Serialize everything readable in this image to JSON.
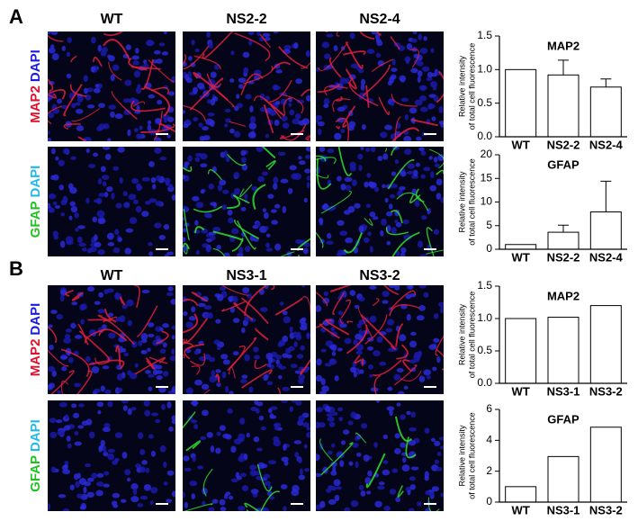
{
  "figure": {
    "panels": [
      {
        "label": "A",
        "columns": [
          "WT",
          "NS2-2",
          "NS2-4"
        ],
        "rows": [
          [
            "MAP2",
            "DAPI"
          ],
          [
            "GFAP",
            "DAPI"
          ]
        ]
      },
      {
        "label": "B",
        "columns": [
          "WT",
          "NS3-1",
          "NS3-2"
        ],
        "rows": [
          [
            "MAP2",
            "DAPI"
          ],
          [
            "GFAP",
            "DAPI"
          ]
        ]
      }
    ]
  },
  "chart_data": [
    {
      "type": "bar",
      "title": "MAP2",
      "ylabel": [
        "Relative intensity",
        "of total cell fluorescence"
      ],
      "categories": [
        "WT",
        "NS2-2",
        "NS2-4"
      ],
      "values": [
        1.0,
        0.92,
        0.74
      ],
      "errors": [
        null,
        0.22,
        0.12
      ],
      "color": "#ffffff",
      "ylim": [
        0,
        1.5
      ],
      "yticks": [
        {
          "value": 0,
          "label": "0.0"
        },
        0.5,
        {
          "value": 1,
          "label": "1.0"
        },
        1.5
      ]
    },
    {
      "type": "bar",
      "title": "GFAP",
      "ylabel": [
        "Relative intensity",
        "of total cell fluorescence"
      ],
      "categories": [
        "WT",
        "NS2-2",
        "NS2-4"
      ],
      "values": [
        1.0,
        3.6,
        7.9
      ],
      "errors": [
        null,
        1.5,
        6.5
      ],
      "color": "#ffffff",
      "ylim": [
        0,
        20
      ],
      "yticks": [
        0,
        5,
        10,
        15,
        20
      ]
    },
    {
      "type": "bar",
      "title": "MAP2",
      "ylabel": [
        "Relative intensity",
        "of total cell fluorescence"
      ],
      "categories": [
        "WT",
        "NS3-1",
        "NS3-2"
      ],
      "values": [
        1.0,
        1.02,
        1.2
      ],
      "color": "#ffffff",
      "ylim": [
        0,
        1.5
      ],
      "yticks": [
        {
          "value": 0,
          "label": "0.0"
        },
        0.5,
        {
          "value": 1,
          "label": "1.0"
        },
        1.5
      ]
    },
    {
      "type": "bar",
      "title": "GFAP",
      "ylabel": [
        "Relative intensity",
        "of total cell fluorescence"
      ],
      "categories": [
        "WT",
        "NS3-1",
        "NS3-2"
      ],
      "values": [
        1.0,
        2.95,
        4.85
      ],
      "color": "#ffffff",
      "ylim": [
        0,
        6
      ],
      "yticks": [
        0,
        2,
        4,
        6
      ]
    }
  ]
}
